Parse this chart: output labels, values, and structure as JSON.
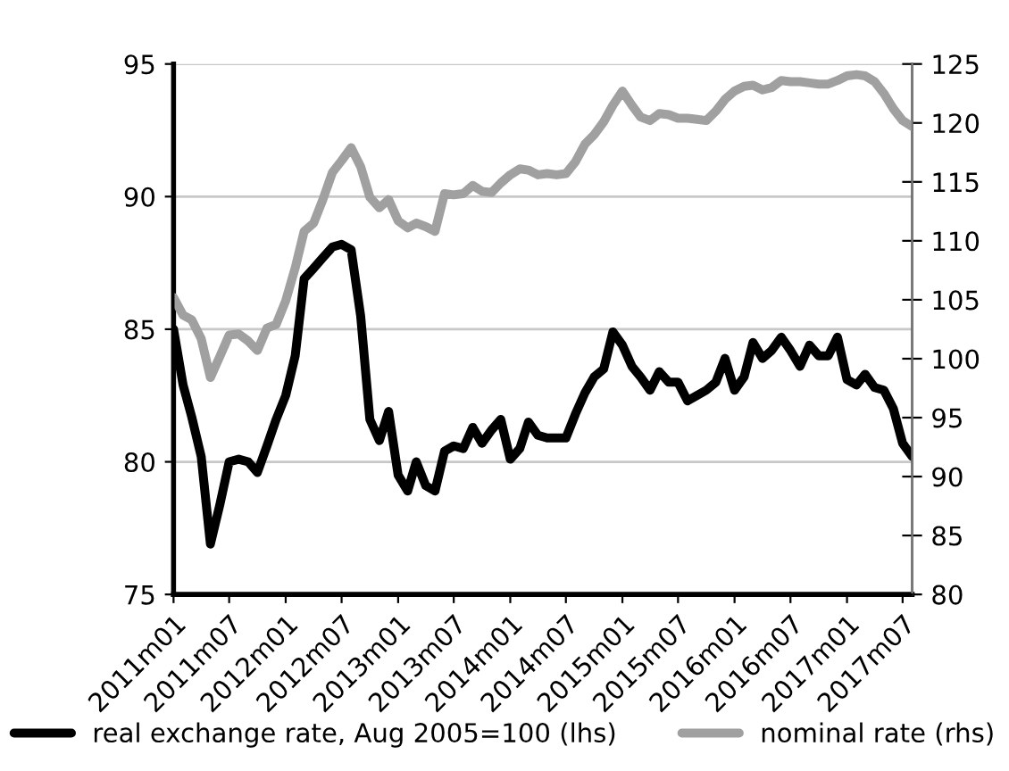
{
  "chart_data": {
    "type": "line",
    "x": [
      "2011-01",
      "2011-02",
      "2011-03",
      "2011-04",
      "2011-05",
      "2011-06",
      "2011-07",
      "2011-08",
      "2011-09",
      "2011-10",
      "2011-11",
      "2011-12",
      "2012-01",
      "2012-02",
      "2012-03",
      "2012-04",
      "2012-05",
      "2012-06",
      "2012-07",
      "2012-08",
      "2012-09",
      "2012-10",
      "2012-11",
      "2012-12",
      "2013-01",
      "2013-02",
      "2013-03",
      "2013-04",
      "2013-05",
      "2013-06",
      "2013-07",
      "2013-08",
      "2013-09",
      "2013-10",
      "2013-11",
      "2013-12",
      "2014-01",
      "2014-02",
      "2014-03",
      "2014-04",
      "2014-05",
      "2014-06",
      "2014-07",
      "2014-08",
      "2014-09",
      "2014-10",
      "2014-11",
      "2014-12",
      "2015-01",
      "2015-02",
      "2015-03",
      "2015-04",
      "2015-05",
      "2015-06",
      "2015-07",
      "2015-08",
      "2015-09",
      "2015-10",
      "2015-11",
      "2015-12",
      "2016-01",
      "2016-02",
      "2016-03",
      "2016-04",
      "2016-05",
      "2016-06",
      "2016-07",
      "2016-08",
      "2016-09",
      "2016-10",
      "2016-11",
      "2016-12",
      "2017-01",
      "2017-02",
      "2017-03",
      "2017-04",
      "2017-05",
      "2017-06",
      "2017-07",
      "2017-08"
    ],
    "series": [
      {
        "name": "real exchange rate, Aug 2005=100 (lhs)",
        "color": "#000000",
        "values": [
          85.0,
          82.9,
          81.7,
          80.2,
          76.9,
          78.4,
          80.0,
          80.1,
          80.0,
          79.6,
          80.6,
          81.6,
          82.5,
          84.0,
          86.9,
          87.3,
          87.7,
          88.1,
          88.2,
          88.0,
          85.5,
          81.6,
          80.8,
          81.9,
          79.5,
          78.9,
          80.0,
          79.1,
          78.9,
          80.4,
          80.6,
          80.5,
          81.3,
          80.7,
          81.2,
          81.6,
          80.1,
          80.5,
          81.5,
          81.0,
          80.9,
          80.9,
          80.9,
          81.8,
          82.6,
          83.2,
          83.5,
          84.9,
          84.4,
          83.6,
          83.2,
          82.7,
          83.4,
          83.0,
          83.0,
          82.3,
          82.5,
          82.7,
          83.0,
          83.9,
          82.7,
          83.2,
          84.5,
          83.9,
          84.2,
          84.7,
          84.2,
          83.6,
          84.4,
          84.0,
          84.0,
          84.7,
          83.1,
          82.9,
          83.3,
          82.8,
          82.7,
          82.0,
          80.7,
          80.2
        ]
      },
      {
        "name": "nominal rate (rhs)",
        "color": "#a0a0a0",
        "axis": "y2",
        "values": [
          105.2,
          103.7,
          103.3,
          101.7,
          98.4,
          100.2,
          102.0,
          102.1,
          101.5,
          100.7,
          102.6,
          102.9,
          104.9,
          107.7,
          110.8,
          111.5,
          113.5,
          115.8,
          116.8,
          117.9,
          116.3,
          113.7,
          112.8,
          113.5,
          111.7,
          111.1,
          111.5,
          111.2,
          110.8,
          114.0,
          113.9,
          114.0,
          114.7,
          114.2,
          114.1,
          114.9,
          115.6,
          116.1,
          116.0,
          115.6,
          115.7,
          115.6,
          115.7,
          116.7,
          118.2,
          119.0,
          120.1,
          121.5,
          122.7,
          121.5,
          120.5,
          120.2,
          120.8,
          120.7,
          120.4,
          120.4,
          120.3,
          120.2,
          121.0,
          122.0,
          122.7,
          123.1,
          123.2,
          122.8,
          123.0,
          123.6,
          123.5,
          123.5,
          123.4,
          123.3,
          123.3,
          123.6,
          124.0,
          124.1,
          124.0,
          123.5,
          122.5,
          121.2,
          120.2,
          119.7
        ]
      }
    ],
    "xlim": [
      "2011-01",
      "2017-08"
    ],
    "xticks": [
      {
        "value": "2011-01",
        "label": "2011m01"
      },
      {
        "value": "2011-07",
        "label": "2011m07"
      },
      {
        "value": "2012-01",
        "label": "2012m01"
      },
      {
        "value": "2012-07",
        "label": "2012m07"
      },
      {
        "value": "2013-01",
        "label": "2013m01"
      },
      {
        "value": "2013-07",
        "label": "2013m07"
      },
      {
        "value": "2014-01",
        "label": "2014m01"
      },
      {
        "value": "2014-07",
        "label": "2014m07"
      },
      {
        "value": "2015-01",
        "label": "2015m01"
      },
      {
        "value": "2015-07",
        "label": "2015m07"
      },
      {
        "value": "2016-01",
        "label": "2016m01"
      },
      {
        "value": "2016-07",
        "label": "2016m07"
      },
      {
        "value": "2017-01",
        "label": "2017m01"
      },
      {
        "value": "2017-07",
        "label": "2017m07"
      }
    ],
    "ylim": [
      75,
      95
    ],
    "yticks": [
      75,
      80,
      85,
      90,
      95
    ],
    "y2lim": [
      80,
      125
    ],
    "y2ticks": [
      80,
      85,
      90,
      95,
      100,
      105,
      110,
      115,
      120,
      125
    ],
    "grid": "y",
    "legend": "bottom",
    "marker": "none",
    "line_style": "solid"
  }
}
